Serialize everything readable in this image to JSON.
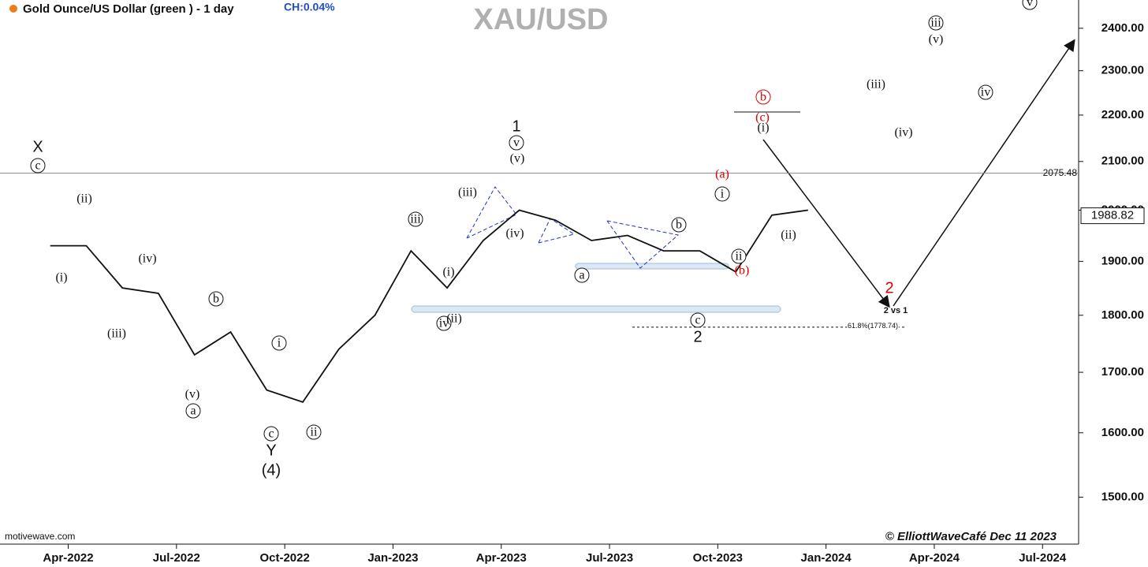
{
  "chart_data": {
    "type": "line",
    "title": "XAU/USD",
    "header": "Gold Ounce/US Dollar (green ) - 1 day",
    "change": "CH:0.04%",
    "source": "motivewave.com",
    "credit": "© ElliottWaveCafé Dec 11 2023",
    "x": [
      "2022-03",
      "2022-04",
      "2022-05",
      "2022-06",
      "2022-07",
      "2022-08",
      "2022-09",
      "2022-10",
      "2022-11",
      "2022-12",
      "2023-01",
      "2023-02",
      "2023-03",
      "2023-04",
      "2023-05",
      "2023-06",
      "2023-07",
      "2023-08",
      "2023-09",
      "2023-10",
      "2023-11",
      "2023-12"
    ],
    "values": [
      1930,
      1930,
      1850,
      1840,
      1730,
      1770,
      1670,
      1650,
      1740,
      1800,
      1920,
      1850,
      1940,
      2000,
      1980,
      1940,
      1950,
      1920,
      1920,
      1880,
      1990,
      2000
    ],
    "color": "#111111",
    "log_scale": true,
    "xlim": [
      "2022-02",
      "2024-08"
    ],
    "xticks": [
      {
        "value": "2022-04",
        "label": "Apr-2022"
      },
      {
        "value": "2022-07",
        "label": "Jul-2022"
      },
      {
        "value": "2022-10",
        "label": "Oct-2022"
      },
      {
        "value": "2023-01",
        "label": "Jan-2023"
      },
      {
        "value": "2023-04",
        "label": "Apr-2023"
      },
      {
        "value": "2023-07",
        "label": "Jul-2023"
      },
      {
        "value": "2023-10",
        "label": "Oct-2023"
      },
      {
        "value": "2024-01",
        "label": "Jan-2024"
      },
      {
        "value": "2024-04",
        "label": "Apr-2024"
      },
      {
        "value": "2024-07",
        "label": "Jul-2024"
      }
    ],
    "ylim": [
      1431,
      2469
    ],
    "yticks": [
      {
        "value": 1500,
        "label": "1500.00"
      },
      {
        "value": 1600,
        "label": "1600.00"
      },
      {
        "value": 1700,
        "label": "1700.00"
      },
      {
        "value": 1800,
        "label": "1800.00"
      },
      {
        "value": 1900,
        "label": "1900.00"
      },
      {
        "value": 2000,
        "label": "2000.00"
      },
      {
        "value": 2100,
        "label": "2100.00"
      },
      {
        "value": 2200,
        "label": "2200.00"
      },
      {
        "value": 2300,
        "label": "2300.00"
      },
      {
        "value": 2400,
        "label": "2400.00"
      }
    ],
    "reference_line": 2075.48,
    "last_price": 1988.82,
    "fib_level": {
      "value": 1778.74,
      "label": "61.8%(1778.74)"
    },
    "projection_label": "2 vs 1",
    "annotations": [
      {
        "text": "X",
        "circled": false,
        "color": "#111111"
      },
      {
        "text": "c",
        "circled": true,
        "color": "#111111"
      },
      {
        "text": "(ii)",
        "circled": false,
        "color": "#111111"
      },
      {
        "text": "(iv)",
        "circled": false,
        "color": "#111111"
      },
      {
        "text": "(i)",
        "circled": false,
        "color": "#111111"
      },
      {
        "text": "(iii)",
        "circled": false,
        "color": "#111111"
      },
      {
        "text": "b",
        "circled": true,
        "color": "#111111"
      },
      {
        "text": "(v)",
        "circled": false,
        "color": "#111111"
      },
      {
        "text": "a",
        "circled": true,
        "color": "#111111"
      },
      {
        "text": "i",
        "circled": true,
        "color": "#111111"
      },
      {
        "text": "c",
        "circled": true,
        "color": "#111111"
      },
      {
        "text": "Y",
        "circled": false,
        "color": "#111111"
      },
      {
        "text": "(4)",
        "circled": false,
        "color": "#111111"
      },
      {
        "text": "ii",
        "circled": true,
        "color": "#111111"
      },
      {
        "text": "iii",
        "circled": true,
        "color": "#111111"
      },
      {
        "text": "(i)",
        "circled": false,
        "color": "#111111"
      },
      {
        "text": "iv",
        "circled": true,
        "color": "#111111"
      },
      {
        "text": "(ii)",
        "circled": false,
        "color": "#111111"
      },
      {
        "text": "(iii)",
        "circled": false,
        "color": "#111111"
      },
      {
        "text": "(iv)",
        "circled": false,
        "color": "#111111"
      },
      {
        "text": "1",
        "circled": false,
        "color": "#111111"
      },
      {
        "text": "v",
        "circled": true,
        "color": "#111111"
      },
      {
        "text": "(v)",
        "circled": false,
        "color": "#111111"
      },
      {
        "text": "a",
        "circled": true,
        "color": "#111111"
      },
      {
        "text": "b",
        "circled": true,
        "color": "#111111"
      },
      {
        "text": "c",
        "circled": true,
        "color": "#111111"
      },
      {
        "text": "2",
        "circled": false,
        "color": "#111111"
      },
      {
        "text": "(a)",
        "circled": false,
        "color": "#dd0000"
      },
      {
        "text": "i",
        "circled": true,
        "color": "#111111"
      },
      {
        "text": "ii",
        "circled": true,
        "color": "#111111"
      },
      {
        "text": "(b)",
        "circled": false,
        "color": "#dd0000"
      },
      {
        "text": "b",
        "circled": true,
        "color": "#dd0000"
      },
      {
        "text": "(c)",
        "circled": false,
        "color": "#dd0000"
      },
      {
        "text": "(i)",
        "circled": false,
        "color": "#111111"
      },
      {
        "text": "(ii)",
        "circled": false,
        "color": "#111111"
      },
      {
        "text": "2",
        "circled": false,
        "color": "#dd0000"
      },
      {
        "text": "(iii)",
        "circled": false,
        "color": "#111111"
      },
      {
        "text": "(iv)",
        "circled": false,
        "color": "#111111"
      },
      {
        "text": "iii",
        "circled": true,
        "color": "#111111"
      },
      {
        "text": "(v)",
        "circled": false,
        "color": "#111111"
      },
      {
        "text": "iv",
        "circled": true,
        "color": "#111111"
      },
      {
        "text": "v",
        "circled": true,
        "color": "#111111"
      }
    ]
  }
}
